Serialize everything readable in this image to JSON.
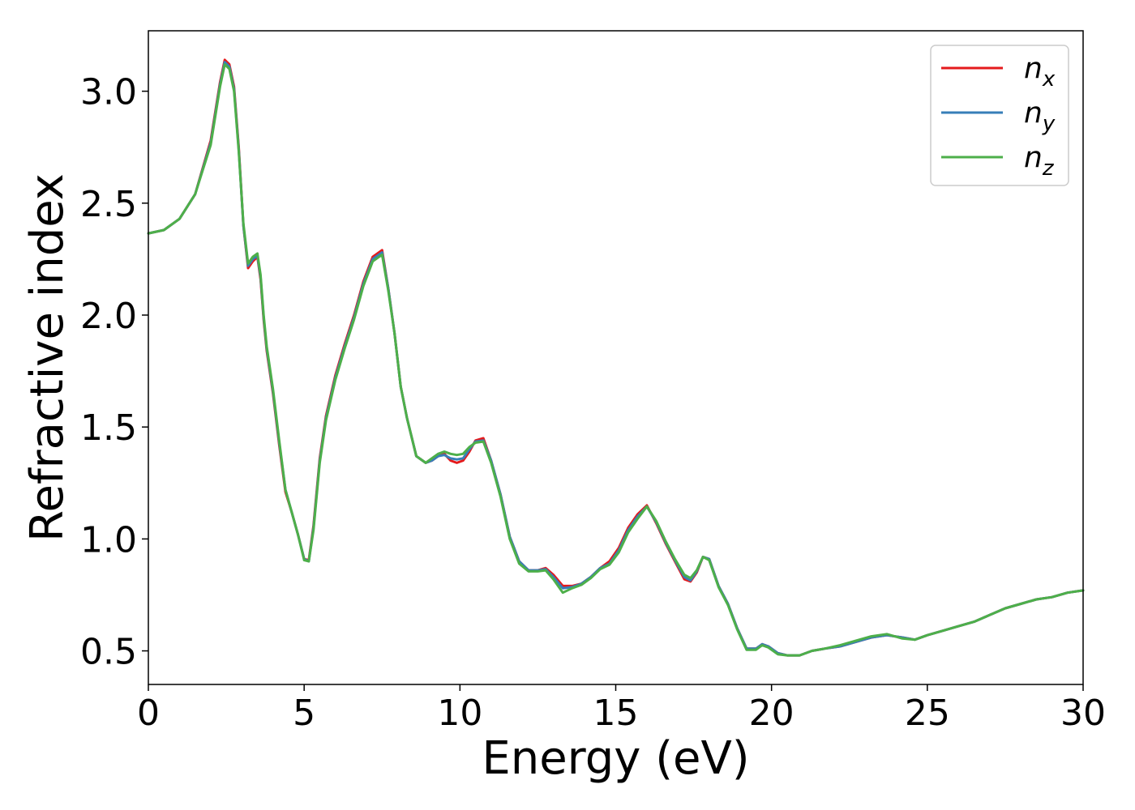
{
  "chart_data": {
    "type": "line",
    "xlabel": "Energy (eV)",
    "ylabel": "Refractive index",
    "xlim": [
      0,
      30
    ],
    "ylim": [
      0.35,
      3.27
    ],
    "xticks": [
      "0",
      "5",
      "10",
      "15",
      "20",
      "25",
      "30"
    ],
    "yticks": [
      "0.5",
      "1.0",
      "1.5",
      "2.0",
      "2.5",
      "3.0"
    ],
    "grid": false,
    "legend_position": "top-right",
    "series": [
      {
        "name": "n",
        "subscript": "x",
        "color": "#e41a1c",
        "x": [
          0,
          0.5,
          1,
          1.5,
          2,
          2.3,
          2.45,
          2.6,
          2.75,
          2.9,
          3.05,
          3.2,
          3.35,
          3.5,
          3.6,
          3.7,
          3.8,
          4.0,
          4.2,
          4.4,
          4.6,
          4.8,
          5.0,
          5.15,
          5.3,
          5.5,
          5.7,
          6.0,
          6.3,
          6.6,
          6.9,
          7.2,
          7.5,
          7.7,
          7.9,
          8.1,
          8.3,
          8.6,
          8.9,
          9.1,
          9.3,
          9.5,
          9.7,
          9.9,
          10.1,
          10.3,
          10.5,
          10.75,
          11.0,
          11.3,
          11.6,
          11.9,
          12.2,
          12.5,
          12.75,
          13.0,
          13.3,
          13.6,
          13.9,
          14.2,
          14.5,
          14.8,
          15.1,
          15.4,
          15.7,
          16.0,
          16.3,
          16.6,
          16.9,
          17.2,
          17.4,
          17.6,
          17.8,
          18.0,
          18.3,
          18.6,
          18.9,
          19.2,
          19.5,
          19.7,
          19.9,
          20.2,
          20.5,
          20.9,
          21.3,
          21.7,
          22.2,
          22.7,
          23.2,
          23.7,
          24.2,
          24.6,
          25.0,
          25.5,
          26.0,
          26.5,
          27.0,
          27.5,
          28.0,
          28.5,
          29.0,
          29.5,
          30.0
        ],
        "values": [
          2.365,
          2.38,
          2.43,
          2.54,
          2.78,
          3.04,
          3.14,
          3.12,
          3.02,
          2.75,
          2.4,
          2.21,
          2.24,
          2.26,
          2.16,
          1.98,
          1.84,
          1.65,
          1.42,
          1.21,
          1.12,
          1.02,
          0.91,
          0.905,
          1.06,
          1.36,
          1.55,
          1.73,
          1.87,
          2.0,
          2.15,
          2.26,
          2.29,
          2.12,
          1.92,
          1.68,
          1.54,
          1.37,
          1.34,
          1.35,
          1.37,
          1.38,
          1.35,
          1.34,
          1.35,
          1.39,
          1.44,
          1.45,
          1.35,
          1.2,
          1.01,
          0.9,
          0.86,
          0.86,
          0.87,
          0.84,
          0.79,
          0.79,
          0.8,
          0.83,
          0.87,
          0.9,
          0.96,
          1.05,
          1.11,
          1.15,
          1.07,
          0.98,
          0.9,
          0.82,
          0.81,
          0.85,
          0.92,
          0.91,
          0.79,
          0.71,
          0.6,
          0.51,
          0.51,
          0.53,
          0.52,
          0.49,
          0.48,
          0.48,
          0.5,
          0.51,
          0.52,
          0.54,
          0.56,
          0.57,
          0.56,
          0.55,
          0.57,
          0.59,
          0.61,
          0.63,
          0.66,
          0.69,
          0.71,
          0.73,
          0.74,
          0.76,
          0.77
        ]
      },
      {
        "name": "n",
        "subscript": "y",
        "color": "#377eb8",
        "x": [
          0,
          0.5,
          1,
          1.5,
          2,
          2.3,
          2.45,
          2.6,
          2.75,
          2.9,
          3.05,
          3.2,
          3.35,
          3.5,
          3.6,
          3.7,
          3.8,
          4.0,
          4.2,
          4.4,
          4.6,
          4.8,
          5.0,
          5.15,
          5.3,
          5.5,
          5.7,
          6.0,
          6.3,
          6.6,
          6.9,
          7.2,
          7.5,
          7.7,
          7.9,
          8.1,
          8.3,
          8.6,
          8.9,
          9.1,
          9.3,
          9.5,
          9.7,
          9.9,
          10.1,
          10.3,
          10.5,
          10.75,
          11.0,
          11.3,
          11.6,
          11.9,
          12.2,
          12.5,
          12.75,
          13.0,
          13.3,
          13.6,
          13.9,
          14.2,
          14.5,
          14.8,
          15.1,
          15.4,
          15.7,
          16.0,
          16.3,
          16.6,
          16.9,
          17.2,
          17.4,
          17.6,
          17.8,
          18.0,
          18.3,
          18.6,
          18.9,
          19.2,
          19.5,
          19.7,
          19.9,
          20.2,
          20.5,
          20.9,
          21.3,
          21.7,
          22.2,
          22.7,
          23.2,
          23.7,
          24.2,
          24.6,
          25.0,
          25.5,
          26.0,
          26.5,
          27.0,
          27.5,
          28.0,
          28.5,
          29.0,
          29.5,
          30.0
        ],
        "values": [
          2.365,
          2.38,
          2.43,
          2.54,
          2.77,
          3.03,
          3.13,
          3.11,
          3.01,
          2.74,
          2.4,
          2.22,
          2.25,
          2.265,
          2.17,
          1.99,
          1.85,
          1.66,
          1.43,
          1.22,
          1.12,
          1.02,
          0.91,
          0.9,
          1.05,
          1.35,
          1.54,
          1.72,
          1.86,
          1.99,
          2.14,
          2.25,
          2.28,
          2.12,
          1.92,
          1.68,
          1.54,
          1.37,
          1.34,
          1.35,
          1.37,
          1.375,
          1.36,
          1.355,
          1.36,
          1.4,
          1.435,
          1.44,
          1.35,
          1.2,
          1.01,
          0.9,
          0.86,
          0.86,
          0.865,
          0.83,
          0.78,
          0.785,
          0.8,
          0.83,
          0.87,
          0.89,
          0.95,
          1.04,
          1.1,
          1.145,
          1.075,
          0.985,
          0.905,
          0.83,
          0.815,
          0.855,
          0.92,
          0.91,
          0.79,
          0.71,
          0.6,
          0.51,
          0.51,
          0.53,
          0.52,
          0.49,
          0.48,
          0.48,
          0.5,
          0.51,
          0.52,
          0.54,
          0.56,
          0.57,
          0.56,
          0.55,
          0.57,
          0.59,
          0.61,
          0.63,
          0.66,
          0.69,
          0.71,
          0.73,
          0.74,
          0.76,
          0.77
        ]
      },
      {
        "name": "n",
        "subscript": "z",
        "color": "#4daf4a",
        "x": [
          0,
          0.5,
          1,
          1.5,
          2,
          2.3,
          2.45,
          2.6,
          2.75,
          2.9,
          3.05,
          3.2,
          3.35,
          3.5,
          3.6,
          3.7,
          3.8,
          4.0,
          4.2,
          4.4,
          4.6,
          4.8,
          5.0,
          5.15,
          5.3,
          5.5,
          5.7,
          6.0,
          6.3,
          6.6,
          6.9,
          7.2,
          7.5,
          7.7,
          7.9,
          8.1,
          8.3,
          8.6,
          8.9,
          9.1,
          9.3,
          9.5,
          9.7,
          9.9,
          10.1,
          10.3,
          10.5,
          10.75,
          11.0,
          11.3,
          11.6,
          11.9,
          12.2,
          12.5,
          12.75,
          13.0,
          13.3,
          13.6,
          13.9,
          14.2,
          14.5,
          14.8,
          15.1,
          15.4,
          15.7,
          16.0,
          16.3,
          16.6,
          16.9,
          17.2,
          17.4,
          17.6,
          17.8,
          18.0,
          18.3,
          18.6,
          18.9,
          19.2,
          19.5,
          19.7,
          19.9,
          20.2,
          20.5,
          20.9,
          21.3,
          21.7,
          22.2,
          22.7,
          23.2,
          23.7,
          24.2,
          24.6,
          25.0,
          25.5,
          26.0,
          26.5,
          27.0,
          27.5,
          28.0,
          28.5,
          29.0,
          29.5,
          30.0
        ],
        "values": [
          2.365,
          2.38,
          2.43,
          2.54,
          2.76,
          3.02,
          3.12,
          3.1,
          3.0,
          2.73,
          2.41,
          2.23,
          2.26,
          2.275,
          2.18,
          2.0,
          1.86,
          1.67,
          1.44,
          1.22,
          1.12,
          1.02,
          0.905,
          0.9,
          1.04,
          1.34,
          1.53,
          1.71,
          1.85,
          1.98,
          2.13,
          2.24,
          2.27,
          2.11,
          1.92,
          1.68,
          1.54,
          1.37,
          1.34,
          1.36,
          1.38,
          1.39,
          1.38,
          1.375,
          1.38,
          1.41,
          1.43,
          1.435,
          1.34,
          1.19,
          1.0,
          0.89,
          0.855,
          0.855,
          0.86,
          0.82,
          0.76,
          0.78,
          0.795,
          0.825,
          0.865,
          0.885,
          0.94,
          1.03,
          1.09,
          1.145,
          1.08,
          0.99,
          0.91,
          0.84,
          0.825,
          0.86,
          0.92,
          0.905,
          0.785,
          0.705,
          0.595,
          0.505,
          0.505,
          0.525,
          0.515,
          0.485,
          0.48,
          0.48,
          0.5,
          0.51,
          0.525,
          0.545,
          0.565,
          0.575,
          0.555,
          0.55,
          0.57,
          0.59,
          0.61,
          0.63,
          0.66,
          0.69,
          0.71,
          0.73,
          0.74,
          0.76,
          0.77
        ]
      }
    ]
  }
}
